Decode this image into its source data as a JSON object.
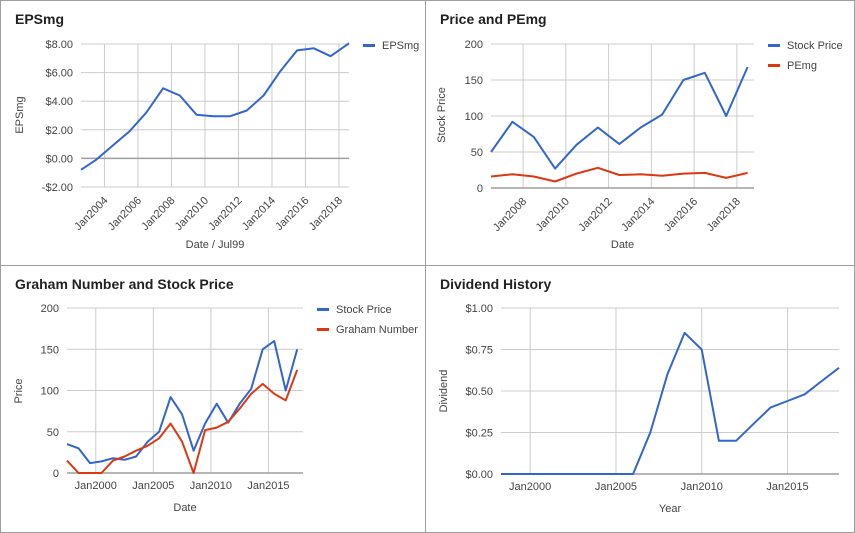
{
  "colors": {
    "blue": "#3366cc",
    "red": "#dc3912",
    "grid": "#cccccc",
    "baseline": "#9e9e9e",
    "text": "#444444"
  },
  "chart_data": [
    {
      "type": "line",
      "title": "EPSmg",
      "xlabel": "Date / Jul99",
      "ylabel": "EPSmg",
      "ylim": [
        -2,
        8
      ],
      "xlim": [
        2002.6,
        2018.6
      ],
      "yticks": [
        -2,
        0,
        2,
        4,
        6,
        8
      ],
      "ytick_labels": [
        "-$2.00",
        "$0.00",
        "$2.00",
        "$4.00",
        "$6.00",
        "$8.00"
      ],
      "xticks": [
        2004,
        2006,
        2008,
        2010,
        2012,
        2014,
        2016,
        2018
      ],
      "xtick_labels": [
        "Jan2004",
        "Jan2006",
        "Jan2008",
        "Jan2010",
        "Jan2012",
        "Jan2014",
        "Jan2016",
        "Jan2018"
      ],
      "xtick_rotated": true,
      "legend": "right",
      "series": [
        {
          "name": "EPSmg",
          "color": "#3366cc",
          "x": [
            2002.6,
            2003.5,
            2004.5,
            2005.5,
            2006.5,
            2007.5,
            2008.5,
            2009.5,
            2010.5,
            2011.5,
            2012.5,
            2013.5,
            2014.5,
            2015.5,
            2016.5,
            2017.5,
            2018.6
          ],
          "y": [
            -0.8,
            -0.1,
            0.9,
            1.9,
            3.2,
            4.9,
            4.4,
            3.05,
            2.95,
            2.95,
            3.35,
            4.4,
            6.1,
            7.55,
            7.7,
            7.15,
            8.05
          ]
        }
      ]
    },
    {
      "type": "line",
      "title": "Price and PEmg",
      "xlabel": "Date",
      "ylabel": "Stock Price",
      "ylim": [
        0,
        200
      ],
      "xlim": [
        2006.5,
        2018.8
      ],
      "yticks": [
        0,
        50,
        100,
        150,
        200
      ],
      "ytick_labels": [
        "0",
        "50",
        "100",
        "150",
        "200"
      ],
      "xticks": [
        2008,
        2010,
        2012,
        2014,
        2016,
        2018
      ],
      "xtick_labels": [
        "Jan2008",
        "Jan2010",
        "Jan2012",
        "Jan2014",
        "Jan2016",
        "Jan2018"
      ],
      "xtick_rotated": true,
      "legend": "right",
      "series": [
        {
          "name": "Stock Price",
          "color": "#3366cc",
          "x": [
            2006.5,
            2007.5,
            2008.5,
            2009.5,
            2010.5,
            2011.5,
            2012.5,
            2013.5,
            2014.5,
            2015.5,
            2016.5,
            2017.5,
            2018.5
          ],
          "y": [
            50,
            92,
            71,
            27,
            60,
            84,
            61,
            84,
            102,
            150,
            160,
            100,
            168
          ]
        },
        {
          "name": "PEmg",
          "color": "#dc3912",
          "x": [
            2006.5,
            2007.5,
            2008.5,
            2009.5,
            2010.5,
            2011.5,
            2012.5,
            2013.5,
            2014.5,
            2015.5,
            2016.5,
            2017.5,
            2018.5
          ],
          "y": [
            16,
            19,
            16,
            9,
            20,
            28,
            18,
            19,
            17,
            20,
            21,
            14,
            21
          ]
        }
      ]
    },
    {
      "type": "line",
      "title": "Graham Number and Stock Price",
      "xlabel": "Date",
      "ylabel": "Price",
      "ylim": [
        0,
        200
      ],
      "xlim": [
        1997.5,
        2018
      ],
      "yticks": [
        0,
        50,
        100,
        150,
        200
      ],
      "ytick_labels": [
        "0",
        "50",
        "100",
        "150",
        "200"
      ],
      "xticks": [
        2000,
        2005,
        2010,
        2015
      ],
      "xtick_labels": [
        "Jan2000",
        "Jan2005",
        "Jan2010",
        "Jan2015"
      ],
      "xtick_rotated": false,
      "legend": "right",
      "series": [
        {
          "name": "Stock Price",
          "color": "#3366cc",
          "x": [
            1997.5,
            1998.5,
            1999.5,
            2000.5,
            2001.5,
            2002.5,
            2003.5,
            2004.5,
            2005.5,
            2006.5,
            2007.5,
            2008.5,
            2009.5,
            2010.5,
            2011.5,
            2012.5,
            2013.5,
            2014.5,
            2015.5,
            2016.5,
            2017.5
          ],
          "y": [
            35,
            30,
            12,
            14,
            18,
            16,
            20,
            38,
            50,
            92,
            71,
            27,
            60,
            84,
            61,
            84,
            102,
            150,
            160,
            100,
            150
          ]
        },
        {
          "name": "Graham Number",
          "color": "#dc3912",
          "x": [
            1997.5,
            1998.5,
            1999.5,
            2000.5,
            2001.5,
            2002.5,
            2003.5,
            2004.5,
            2005.5,
            2006.5,
            2007.5,
            2008.5,
            2009.5,
            2010.5,
            2011.5,
            2012.5,
            2013.5,
            2014.5,
            2015.5,
            2016.5,
            2017.5
          ],
          "y": [
            15,
            0,
            0,
            0,
            15,
            20,
            27,
            33,
            42,
            60,
            38,
            0,
            52,
            55,
            62,
            78,
            96,
            108,
            96,
            88,
            125
          ]
        }
      ]
    },
    {
      "type": "line",
      "title": "Dividend History",
      "xlabel": "Year",
      "ylabel": "Dividend",
      "ylim": [
        0,
        1
      ],
      "xlim": [
        1998.3,
        2018
      ],
      "yticks": [
        0,
        0.25,
        0.5,
        0.75,
        1
      ],
      "ytick_labels": [
        "$0.00",
        "$0.25",
        "$0.50",
        "$0.75",
        "$1.00"
      ],
      "xticks": [
        2000,
        2005,
        2010,
        2015
      ],
      "xtick_labels": [
        "Jan2000",
        "Jan2005",
        "Jan2010",
        "Jan2015"
      ],
      "xtick_rotated": false,
      "legend": "none",
      "series": [
        {
          "name": "",
          "color": "#3366cc",
          "x": [
            1998.3,
            2006,
            2007,
            2008,
            2009,
            2010,
            2011,
            2012,
            2013,
            2014,
            2015,
            2016,
            2017,
            2018
          ],
          "y": [
            0,
            0,
            0.25,
            0.6,
            0.85,
            0.75,
            0.2,
            0.2,
            0.3,
            0.4,
            0.44,
            0.48,
            0.56,
            0.64
          ]
        }
      ]
    }
  ]
}
